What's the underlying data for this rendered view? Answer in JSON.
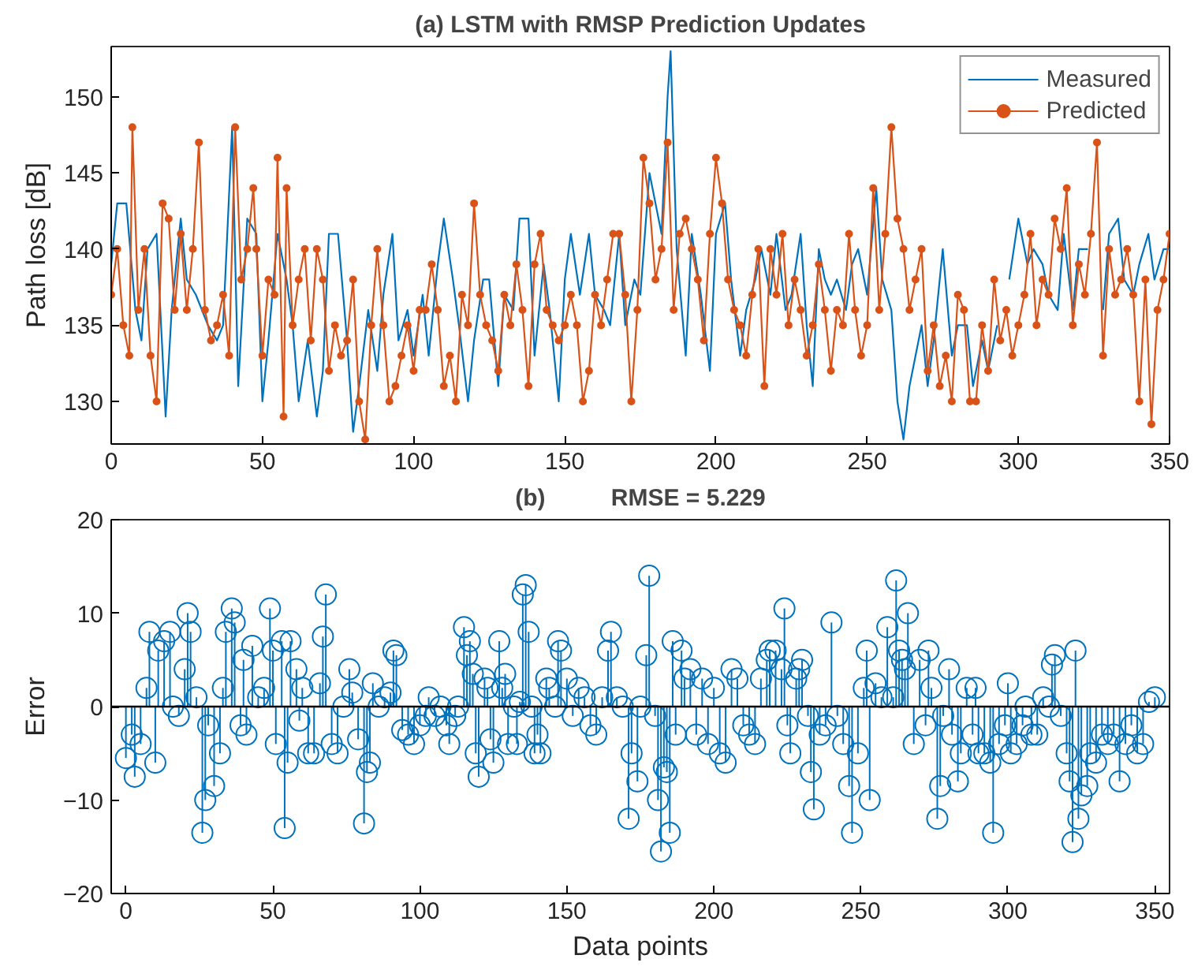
{
  "chart_data": [
    {
      "type": "line",
      "title": "(a) LSTM with RMSP Prediction Updates",
      "ylabel": "Path loss [dB]",
      "xlim": [
        0,
        350
      ],
      "xticks": [
        0,
        50,
        100,
        150,
        200,
        250,
        300,
        350
      ],
      "ylim": [
        127.2,
        153.3
      ],
      "yticks": [
        130,
        135,
        140,
        145,
        150
      ],
      "grid": false,
      "legend": "top right",
      "series": [
        {
          "name": "Measured",
          "color": "#0072bd",
          "marker": "none",
          "x": [
            0,
            2,
            5,
            8,
            10,
            12,
            15,
            18,
            20,
            23,
            25,
            28,
            32,
            35,
            37,
            40,
            42,
            45,
            48,
            50,
            52,
            55,
            58,
            60,
            62,
            65,
            68,
            70,
            72,
            75,
            78,
            80,
            82,
            85,
            88,
            90,
            93,
            95,
            98,
            100,
            103,
            105,
            108,
            110,
            113,
            115,
            118,
            120,
            123,
            125,
            128,
            130,
            133,
            135,
            138,
            140,
            143,
            145,
            148,
            150,
            152,
            155,
            158,
            160,
            163,
            165,
            168,
            170,
            173,
            175,
            178,
            180,
            182,
            184,
            185,
            187,
            190,
            192,
            195,
            198,
            200,
            203,
            205,
            208,
            210,
            213,
            215,
            218,
            220,
            223,
            225,
            228,
            230,
            232,
            234,
            236,
            238,
            240,
            243,
            245,
            247,
            250,
            253,
            255,
            258,
            260,
            262,
            264,
            266,
            268,
            270,
            272,
            275,
            278,
            280,
            283,
            285,
            288,
            290,
            293,
            295,
            297,
            300,
            303,
            305,
            308,
            310,
            313,
            315,
            318,
            320,
            323,
            325,
            328,
            330,
            333,
            335,
            338,
            340,
            343,
            345,
            348,
            350
          ],
          "values": [
            139,
            143,
            143,
            136,
            134,
            140,
            141,
            129,
            136,
            142,
            138,
            137,
            135,
            134,
            135,
            148,
            131,
            142,
            141,
            130,
            134,
            141,
            138,
            135,
            130,
            134,
            129,
            132,
            141,
            141,
            134,
            128,
            131,
            136,
            132,
            137,
            141,
            134,
            136,
            133,
            137,
            133,
            139,
            142,
            138,
            135,
            130,
            134,
            138,
            138,
            131,
            137,
            136,
            142,
            142,
            133,
            139,
            136,
            130,
            138,
            141,
            137,
            141,
            137,
            136,
            135,
            141,
            135,
            138,
            137,
            145,
            143,
            141,
            150,
            153,
            140,
            133,
            141,
            137,
            132,
            141,
            143,
            138,
            133,
            136,
            138,
            140,
            137,
            141,
            136,
            137,
            141,
            135,
            131,
            140,
            138,
            137,
            138,
            136,
            139,
            140,
            137,
            144,
            138,
            136,
            130,
            127.5,
            131,
            133,
            135,
            131,
            134,
            140,
            133,
            135,
            135,
            131,
            134,
            132,
            135,
            null,
            138,
            142,
            139,
            140,
            139,
            137,
            136,
            141,
            136,
            140,
            140,
            null,
            136,
            141,
            142,
            138,
            137,
            139,
            141,
            138,
            140,
            140
          ]
        },
        {
          "name": "Predicted",
          "color": "#d95319",
          "marker": "circle",
          "x": [
            0,
            2,
            4,
            6,
            7,
            9,
            11,
            13,
            15,
            17,
            19,
            21,
            23,
            25,
            27,
            29,
            31,
            33,
            35,
            37,
            39,
            41,
            43,
            45,
            47,
            48,
            50,
            52,
            54,
            55,
            57,
            58,
            60,
            62,
            64,
            66,
            68,
            70,
            72,
            74,
            76,
            78,
            80,
            82,
            84,
            86,
            88,
            90,
            92,
            94,
            96,
            98,
            100,
            102,
            104,
            106,
            108,
            110,
            112,
            114,
            116,
            118,
            120,
            122,
            124,
            126,
            128,
            130,
            132,
            134,
            136,
            138,
            140,
            142,
            144,
            146,
            148,
            150,
            152,
            154,
            156,
            158,
            160,
            162,
            164,
            166,
            168,
            170,
            172,
            174,
            176,
            178,
            180,
            182,
            184,
            186,
            188,
            190,
            192,
            194,
            196,
            198,
            200,
            202,
            204,
            206,
            208,
            210,
            212,
            214,
            216,
            218,
            220,
            222,
            224,
            226,
            228,
            230,
            232,
            234,
            236,
            238,
            240,
            242,
            244,
            246,
            248,
            250,
            252,
            254,
            256,
            258,
            260,
            262,
            264,
            266,
            268,
            270,
            272,
            274,
            276,
            278,
            280,
            282,
            284,
            286,
            288,
            290,
            292,
            294,
            296,
            298,
            300,
            302,
            304,
            306,
            308,
            310,
            312,
            314,
            316,
            318,
            320,
            322,
            324,
            326,
            328,
            330,
            332,
            334,
            336,
            338,
            340,
            342,
            344,
            346,
            348,
            350
          ],
          "values": [
            137,
            140,
            135,
            133,
            148,
            136,
            140,
            133,
            130,
            143,
            142,
            136,
            141,
            136,
            140,
            147,
            136,
            134,
            135,
            137,
            133,
            148,
            138,
            140,
            144,
            140,
            133,
            138,
            137,
            146,
            129,
            144,
            135,
            138,
            140,
            134,
            140,
            138,
            132,
            135,
            133,
            134,
            138,
            130,
            127.5,
            135,
            140,
            135,
            130,
            131,
            133,
            135,
            132,
            136,
            136,
            139,
            136,
            131,
            133,
            130,
            137,
            135,
            143,
            137,
            135,
            134,
            132,
            137,
            135,
            139,
            136,
            131,
            139,
            141,
            136,
            135,
            134,
            135,
            137,
            135,
            130,
            132,
            137,
            135,
            138,
            141,
            141,
            137,
            130,
            136,
            146,
            143,
            138,
            140,
            147,
            136,
            141,
            142,
            140,
            138,
            134,
            141,
            146,
            143,
            138,
            136,
            135,
            133,
            137,
            140,
            131,
            140,
            137,
            141,
            135,
            138,
            136,
            133,
            135,
            139,
            136,
            132,
            136,
            135,
            141,
            136,
            133,
            135,
            144,
            136,
            141,
            148,
            142,
            140,
            136,
            138,
            140,
            132,
            135,
            131,
            133,
            130,
            137,
            136,
            130,
            130,
            135,
            132,
            138,
            134,
            136,
            133,
            135,
            137,
            141,
            135,
            138,
            137,
            142,
            140,
            144,
            135,
            139,
            137,
            141,
            147,
            133,
            140,
            137,
            138,
            140,
            137,
            130,
            138,
            128.5,
            136,
            138,
            141
          ]
        }
      ]
    },
    {
      "type": "lollipop",
      "title": "(b)          RMSE = 5.229",
      "xlabel": "Data points",
      "ylabel": "Error",
      "xlim": [
        -5,
        355
      ],
      "xticks": [
        0,
        50,
        100,
        150,
        200,
        250,
        300,
        350
      ],
      "ylim": [
        -20,
        20
      ],
      "yticks": [
        -20,
        -10,
        0,
        10,
        20
      ],
      "grid": false,
      "marker": "circle",
      "color": "#0072bd",
      "ref_lines": [
        {
          "axis": "y",
          "value": 0,
          "color": "#000000"
        }
      ],
      "x": [
        0,
        2,
        3,
        5,
        7,
        8,
        10,
        11,
        13,
        15,
        16,
        18,
        20,
        21,
        22,
        24,
        26,
        27,
        28,
        30,
        32,
        33,
        34,
        36,
        37,
        39,
        40,
        41,
        43,
        45,
        47,
        49,
        50,
        51,
        53,
        54,
        55,
        56,
        58,
        59,
        60,
        62,
        64,
        66,
        67,
        68,
        70,
        72,
        74,
        76,
        77,
        79,
        81,
        82,
        83,
        84,
        86,
        88,
        90,
        91,
        92,
        94,
        96,
        98,
        100,
        102,
        103,
        105,
        107,
        109,
        110,
        112,
        113,
        115,
        116,
        117,
        118,
        119,
        120,
        122,
        123,
        124,
        125,
        127,
        128,
        129,
        130,
        132,
        133,
        134,
        135,
        136,
        137,
        138,
        139,
        140,
        141,
        143,
        144,
        146,
        147,
        148,
        150,
        152,
        154,
        156,
        158,
        160,
        162,
        164,
        165,
        167,
        169,
        171,
        172,
        174,
        175,
        177,
        178,
        180,
        181,
        182,
        183,
        184,
        185,
        186,
        187,
        189,
        190,
        192,
        194,
        196,
        198,
        200,
        202,
        204,
        206,
        208,
        210,
        212,
        214,
        216,
        218,
        219,
        221,
        223,
        224,
        225,
        226,
        228,
        229,
        230,
        232,
        233,
        234,
        236,
        238,
        240,
        242,
        244,
        246,
        247,
        249,
        251,
        252,
        253,
        255,
        257,
        259,
        261,
        262,
        263,
        264,
        265,
        266,
        268,
        270,
        272,
        273,
        274,
        276,
        277,
        278,
        280,
        281,
        283,
        284,
        286,
        288,
        289,
        290,
        292,
        294,
        295,
        297,
        299,
        300,
        301,
        303,
        305,
        306,
        308,
        310,
        312,
        314,
        315,
        316,
        318,
        320,
        321,
        322,
        323,
        324,
        325,
        327,
        328,
        330,
        332,
        334,
        336,
        338,
        340,
        342,
        344,
        346,
        348,
        350
      ],
      "values": [
        -5.5,
        -3,
        -7.5,
        -4,
        2,
        8,
        -6,
        6,
        7,
        8,
        0,
        -1,
        4,
        10,
        8,
        1,
        -13.5,
        -10,
        -2,
        -8.5,
        -5,
        2,
        8,
        10.5,
        9,
        -2,
        5,
        -3,
        6.5,
        1,
        2,
        10.5,
        6,
        -4,
        7,
        -13,
        -6,
        7,
        4,
        -1.5,
        2,
        -5,
        -5,
        2.5,
        7.5,
        12,
        -4,
        -5,
        0,
        4,
        1.5,
        -3.5,
        -12.5,
        -7,
        -6,
        2.5,
        0,
        1,
        1.5,
        6,
        5.5,
        -2.5,
        -3,
        -4,
        -2,
        -1,
        1,
        -1,
        0,
        -2,
        -4,
        -1,
        0,
        8.5,
        5.5,
        7,
        3.5,
        -5,
        -7.5,
        3,
        2,
        -3.5,
        -6,
        7,
        2,
        3.5,
        -4,
        0,
        -4,
        0.5,
        12,
        13,
        8,
        0,
        -5,
        -3,
        -5,
        3,
        2,
        0,
        7,
        6,
        3,
        -1,
        2,
        1,
        -2,
        -3,
        1,
        6,
        8,
        1,
        0,
        -12,
        -5,
        -8,
        0,
        5.5,
        14,
        -1,
        -10,
        -15.5,
        -6.5,
        -7,
        -13.5,
        7,
        -3,
        6,
        3,
        4,
        -3,
        3,
        -4,
        2,
        -5,
        -6,
        4,
        3,
        -2,
        -3,
        -4,
        3,
        5,
        6,
        6,
        4,
        10.5,
        -2,
        -5,
        3,
        4,
        5,
        -1,
        -7,
        -11,
        -3,
        -2,
        9,
        -1,
        -4,
        -8.5,
        -13.5,
        -5,
        2,
        6,
        -10,
        2.5,
        1,
        8.5,
        1,
        13.5,
        6,
        5,
        4,
        10,
        -4,
        5,
        -2,
        6,
        2,
        -12,
        -8.5,
        -1,
        4,
        -3,
        -8,
        -5,
        2,
        -3,
        2,
        -5,
        -5,
        -6,
        -13.5,
        -4,
        -2,
        2.5,
        -5,
        -4,
        -2,
        0,
        -3,
        -3,
        1,
        0,
        4.5,
        5.5,
        -1,
        -5,
        -8,
        -14.5,
        6,
        -12,
        -9.5,
        -8.5,
        -5,
        -6,
        -3,
        -4,
        -3,
        -8,
        -4,
        -2,
        -5,
        -4,
        0.5,
        1
      ]
    }
  ]
}
